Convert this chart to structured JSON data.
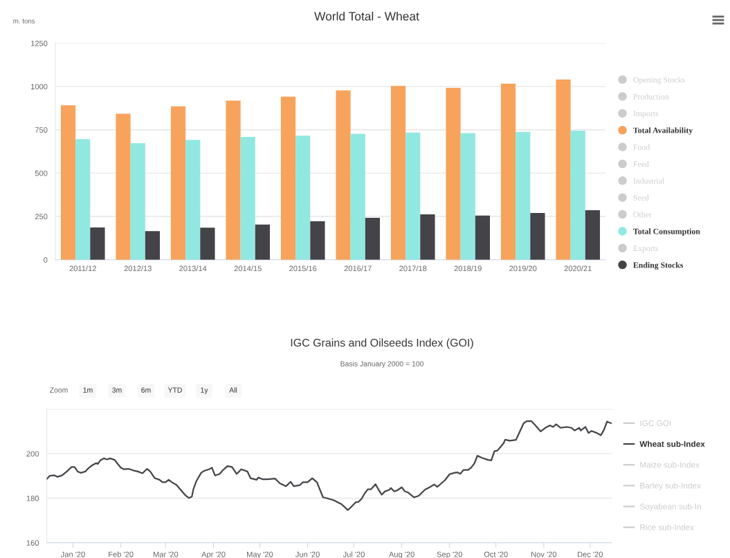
{
  "chart_data": [
    {
      "type": "bar",
      "title": "World Total - Wheat",
      "ylabel": "m. tons",
      "categories": [
        "2011/12",
        "2012/13",
        "2013/14",
        "2014/15",
        "2015/16",
        "2016/17",
        "2017/18",
        "2018/19",
        "2019/20",
        "2020/21"
      ],
      "series": [
        {
          "name": "Opening Stocks",
          "color": "#cccccc",
          "values": [
            null,
            null,
            null,
            null,
            null,
            null,
            null,
            null,
            null,
            null
          ]
        },
        {
          "name": "Production",
          "color": "#cccccc",
          "values": [
            null,
            null,
            null,
            null,
            null,
            null,
            null,
            null,
            null,
            null
          ]
        },
        {
          "name": "Imports",
          "color": "#cccccc",
          "values": [
            null,
            null,
            null,
            null,
            null,
            null,
            null,
            null,
            null,
            null
          ]
        },
        {
          "name": "Total Availability",
          "color": "#f7a35c",
          "values": [
            892,
            843,
            886,
            919,
            942,
            978,
            1004,
            993,
            1017,
            1040
          ]
        },
        {
          "name": "Food",
          "color": "#cccccc",
          "values": [
            null,
            null,
            null,
            null,
            null,
            null,
            null,
            null,
            null,
            null
          ]
        },
        {
          "name": "Feed",
          "color": "#cccccc",
          "values": [
            null,
            null,
            null,
            null,
            null,
            null,
            null,
            null,
            null,
            null
          ]
        },
        {
          "name": "Industrial",
          "color": "#cccccc",
          "values": [
            null,
            null,
            null,
            null,
            null,
            null,
            null,
            null,
            null,
            null
          ]
        },
        {
          "name": "Seed",
          "color": "#cccccc",
          "values": [
            null,
            null,
            null,
            null,
            null,
            null,
            null,
            null,
            null,
            null
          ]
        },
        {
          "name": "Other",
          "color": "#cccccc",
          "values": [
            null,
            null,
            null,
            null,
            null,
            null,
            null,
            null,
            null,
            null
          ]
        },
        {
          "name": "Total Consumption",
          "color": "#91e8e1",
          "values": [
            696,
            673,
            692,
            709,
            716,
            727,
            734,
            731,
            738,
            745
          ]
        },
        {
          "name": "Exports",
          "color": "#cccccc",
          "values": [
            null,
            null,
            null,
            null,
            null,
            null,
            null,
            null,
            null,
            null
          ]
        },
        {
          "name": "Ending Stocks",
          "color": "#434348",
          "values": [
            186,
            165,
            185,
            203,
            222,
            242,
            262,
            255,
            270,
            286
          ]
        }
      ],
      "ylim": [
        0,
        1250
      ],
      "yticks": [
        0,
        250,
        500,
        750,
        1000,
        1250
      ],
      "grid": "y",
      "legend": "right"
    },
    {
      "type": "line",
      "title": "IGC Grains and Oilseeds Index (GOI)",
      "subtitle": "Basis January 2000 = 100",
      "annotations": [
        "Zoom",
        "1m",
        "3m",
        "6m",
        "YTD",
        "1y",
        "All"
      ],
      "series": [
        {
          "name": "IGC GOI",
          "color": "#cccccc"
        },
        {
          "name": "Wheat sub-Index",
          "color": "#434348",
          "x": [
            "2019-12-15",
            "2019-12-17",
            "2019-12-20",
            "2019-12-22",
            "2019-12-25",
            "2019-12-28",
            "2019-12-31",
            "2020-01-02",
            "2020-01-04",
            "2020-01-06",
            "2020-01-09",
            "2020-01-11",
            "2020-01-13",
            "2020-01-16",
            "2020-01-17",
            "2020-01-19",
            "2020-01-21",
            "2020-01-23",
            "2020-01-25",
            "2020-01-28",
            "2020-01-30",
            "2020-02-01",
            "2020-02-03",
            "2020-02-06",
            "2020-02-09",
            "2020-02-12",
            "2020-02-15",
            "2020-02-18",
            "2020-02-20",
            "2020-02-23",
            "2020-02-26",
            "2020-02-28",
            "2020-03-01",
            "2020-03-03",
            "2020-03-05",
            "2020-03-08",
            "2020-03-11",
            "2020-03-14",
            "2020-03-16",
            "2020-03-18",
            "2020-03-19",
            "2020-03-21",
            "2020-03-24",
            "2020-03-26",
            "2020-03-29",
            "2020-03-31",
            "2020-04-02",
            "2020-04-05",
            "2020-04-07",
            "2020-04-10",
            "2020-04-13",
            "2020-04-16",
            "2020-04-19",
            "2020-04-23",
            "2020-04-25",
            "2020-04-29",
            "2020-04-30",
            "2020-05-03",
            "2020-05-06",
            "2020-05-11",
            "2020-05-14",
            "2020-05-18",
            "2020-05-21",
            "2020-05-23",
            "2020-05-27",
            "2020-05-29",
            "2020-06-01",
            "2020-06-04",
            "2020-06-07",
            "2020-06-11",
            "2020-06-13",
            "2020-06-18",
            "2020-06-23",
            "2020-06-27",
            "2020-06-29",
            "2020-07-02",
            "2020-07-04",
            "2020-07-06",
            "2020-07-08",
            "2020-07-10",
            "2020-07-12",
            "2020-07-15",
            "2020-07-17",
            "2020-07-19",
            "2020-07-21",
            "2020-07-24",
            "2020-07-25",
            "2020-07-27",
            "2020-07-29",
            "2020-08-01",
            "2020-08-03",
            "2020-08-05",
            "2020-08-09",
            "2020-08-12",
            "2020-08-16",
            "2020-08-19",
            "2020-08-22",
            "2020-08-24",
            "2020-08-26",
            "2020-08-29",
            "2020-09-01",
            "2020-09-04",
            "2020-09-06",
            "2020-09-08",
            "2020-09-10",
            "2020-09-13",
            "2020-09-15",
            "2020-09-17",
            "2020-09-19",
            "2020-09-22",
            "2020-09-26",
            "2020-09-28",
            "2020-09-30",
            "2020-10-02",
            "2020-10-06",
            "2020-10-07",
            "2020-10-10",
            "2020-10-14",
            "2020-10-16",
            "2020-10-19",
            "2020-10-21",
            "2020-10-24",
            "2020-10-27",
            "2020-10-30",
            "2020-11-02",
            "2020-11-05",
            "2020-11-07",
            "2020-11-09",
            "2020-11-12",
            "2020-11-16",
            "2020-11-19",
            "2020-11-21",
            "2020-11-24",
            "2020-11-25",
            "2020-11-28",
            "2020-11-30",
            "2020-12-02",
            "2020-12-05",
            "2020-12-08",
            "2020-12-10",
            "2020-12-12",
            "2020-12-13",
            "2020-12-15"
          ],
          "values": [
            188.6,
            190.1,
            190.3,
            189.6,
            190.3,
            192.0,
            194.0,
            194.0,
            192.0,
            191.4,
            192.0,
            193.5,
            194.6,
            195.8,
            195.4,
            197.2,
            197.9,
            197.4,
            197.9,
            197.2,
            195.4,
            193.7,
            193.0,
            193.2,
            192.5,
            192.0,
            191.2,
            193.2,
            192.0,
            189.0,
            188.3,
            187.2,
            187.2,
            188.3,
            187.2,
            186.0,
            183.6,
            181.2,
            180.1,
            180.7,
            184.1,
            187.8,
            191.4,
            192.3,
            193.0,
            193.7,
            190.2,
            190.9,
            192.5,
            194.4,
            194.0,
            190.9,
            193.0,
            192.0,
            189.0,
            188.3,
            189.3,
            188.5,
            188.5,
            188.8,
            186.7,
            185.4,
            187.4,
            185.4,
            185.9,
            187.2,
            187.2,
            189.0,
            187.2,
            180.4,
            180.1,
            179.1,
            177.3,
            174.7,
            175.9,
            178.1,
            178.4,
            179.8,
            182.2,
            184.0,
            184.0,
            186.3,
            183.8,
            181.6,
            183.0,
            183.8,
            184.6,
            183.1,
            183.5,
            184.9,
            183.1,
            182.6,
            180.4,
            181.1,
            183.8,
            184.9,
            186.2,
            185.1,
            186.3,
            188.1,
            190.8,
            191.4,
            191.6,
            191.0,
            192.7,
            192.7,
            193.8,
            195.6,
            199.1,
            198.1,
            197.2,
            197.0,
            201.1,
            201.4,
            204.7,
            206.3,
            205.8,
            206.2,
            209.2,
            213.7,
            214.6,
            214.6,
            212.4,
            210.0,
            211.6,
            212.7,
            212.0,
            213.2,
            211.6,
            212.0,
            211.6,
            210.4,
            211.6,
            210.4,
            212.0,
            209.3,
            210.2,
            209.4,
            208.3,
            210.7,
            214.4,
            214.1,
            213.6
          ]
        },
        {
          "name": "Maize sub-Index",
          "color": "#cccccc"
        },
        {
          "name": "Barley sub-Index",
          "color": "#cccccc"
        },
        {
          "name": "Soyabean sub-In",
          "color": "#cccccc"
        },
        {
          "name": "Rice sub-Index",
          "color": "#cccccc"
        }
      ],
      "xlim": [
        "2019-12-15",
        "2020-12-15"
      ],
      "xticks": [
        {
          "value": "2020-01-01",
          "label": "Jan '20"
        },
        {
          "value": "2020-02-01",
          "label": "Feb '20"
        },
        {
          "value": "2020-03-01",
          "label": "Mar '20"
        },
        {
          "value": "2020-04-01",
          "label": "Apr '20"
        },
        {
          "value": "2020-05-01",
          "label": "May '20"
        },
        {
          "value": "2020-06-01",
          "label": "Jun '20"
        },
        {
          "value": "2020-07-01",
          "label": "Jul '20"
        },
        {
          "value": "2020-08-01",
          "label": "Aug '20"
        },
        {
          "value": "2020-09-01",
          "label": "Sep '20"
        },
        {
          "value": "2020-10-01",
          "label": "Oct '20"
        },
        {
          "value": "2020-11-01",
          "label": "Nov '20"
        },
        {
          "value": "2020-12-01",
          "label": "Dec '20"
        }
      ],
      "ylim": [
        160,
        220
      ],
      "yticks": [
        160,
        180,
        200,
        {
          "value": 220,
          "label": null
        }
      ],
      "grid": "y",
      "legend": "right",
      "line_style": "solid"
    }
  ]
}
